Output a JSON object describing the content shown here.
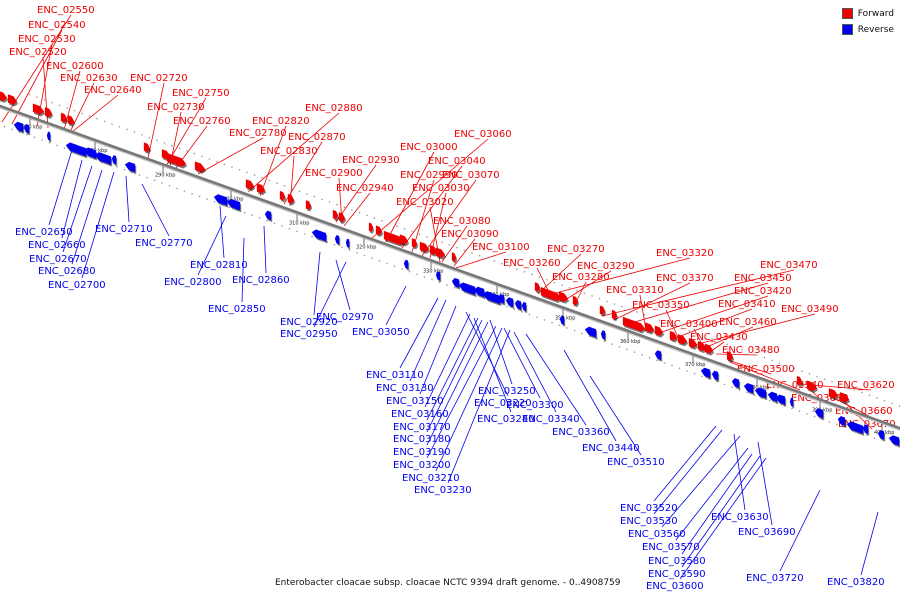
{
  "caption": "Enterobacter cloacae subsp. cloacae NCTC 9394 draft genome. - 0..4908759",
  "legend": [
    {
      "label": "Forward",
      "color": "#ee0000"
    },
    {
      "label": "Reverse",
      "color": "#0000ee"
    }
  ],
  "colors": {
    "forward": "#ee0000",
    "reverse": "#0000ee",
    "backbone": "#777777"
  },
  "ticks": [
    "270 kbp",
    "280 kbp",
    "290 kbp",
    "300 kbp",
    "310 kbp",
    "320 kbp",
    "330 kbp",
    "340 kbp",
    "350 kbp",
    "360 kbp",
    "370 kbp",
    "380 kbp",
    "390 kbp",
    "400 kbp"
  ],
  "forward_genes": [
    "ENC_02550",
    "ENC_02540",
    "ENC_02530",
    "ENC_02520",
    "ENC_02600",
    "ENC_02630",
    "ENC_02640",
    "ENC_02720",
    "ENC_02750",
    "ENC_02730",
    "ENC_02760",
    "ENC_02780",
    "ENC_02880",
    "ENC_02820",
    "ENC_02870",
    "ENC_02830",
    "ENC_02930",
    "ENC_02900",
    "ENC_02940",
    "ENC_03060",
    "ENC_03000",
    "ENC_03040",
    "ENC_02990",
    "ENC_03070",
    "ENC_03030",
    "ENC_03020",
    "ENC_03080",
    "ENC_03090",
    "ENC_03100",
    "ENC_03270",
    "ENC_03320",
    "ENC_03260",
    "ENC_03290",
    "ENC_03280",
    "ENC_03470",
    "ENC_03370",
    "ENC_03450",
    "ENC_03310",
    "ENC_03420",
    "ENC_03410",
    "ENC_03350",
    "ENC_03490",
    "ENC_03460",
    "ENC_03400",
    "ENC_03430",
    "ENC_03480",
    "ENC_03500",
    "ENC_03540",
    "ENC_03620",
    "ENC_03610",
    "ENC_03660",
    "ENC_03670"
  ],
  "reverse_genes": [
    "ENC_02650",
    "ENC_02710",
    "ENC_02660",
    "ENC_02770",
    "ENC_02670",
    "ENC_02680",
    "ENC_02700",
    "ENC_02810",
    "ENC_02800",
    "ENC_02860",
    "ENC_02850",
    "ENC_02920",
    "ENC_02970",
    "ENC_02950",
    "ENC_03050",
    "ENC_03110",
    "ENC_03130",
    "ENC_03250",
    "ENC_03150",
    "ENC_03300",
    "ENC_03220",
    "ENC_03160",
    "ENC_03340",
    "ENC_03240",
    "ENC_03170",
    "ENC_03360",
    "ENC_03180",
    "ENC_03190",
    "ENC_03440",
    "ENC_03200",
    "ENC_03510",
    "ENC_03210",
    "ENC_03230",
    "ENC_03520",
    "ENC_03530",
    "ENC_03630",
    "ENC_03560",
    "ENC_03690",
    "ENC_03570",
    "ENC_03580",
    "ENC_03590",
    "ENC_03600",
    "ENC_03720",
    "ENC_03820"
  ]
}
